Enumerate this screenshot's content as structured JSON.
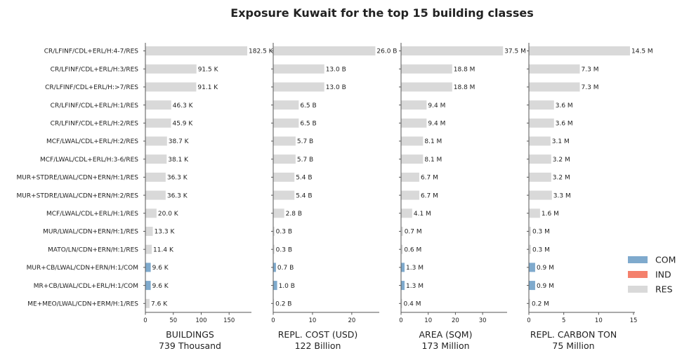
{
  "chart_data": {
    "type": "bar",
    "orientation": "horizontal",
    "title": "Exposure Kuwait for the top 15 building classes",
    "categories": [
      "CR/LFINF/CDL+ERL/H:4-7/RES",
      "CR/LFINF/CDL+ERL/H:3/RES",
      "CR/LFINF/CDL+ERL/H:>7/RES",
      "CR/LFINF/CDL+ERL/H:1/RES",
      "CR/LFINF/CDL+ERL/H:2/RES",
      "MCF/LWAL/CDL+ERL/H:2/RES",
      "MCF/LWAL/CDL+ERL/H:3-6/RES",
      "MUR+STDRE/LWAL/CDN+ERN/H:1/RES",
      "MUR+STDRE/LWAL/CDN+ERN/H:2/RES",
      "MCF/LWAL/CDL+ERL/H:1/RES",
      "MUR/LWAL/CDN+ERN/H:1/RES",
      "MATO/LN/CDN+ERN/H:1/RES",
      "MUR+CB/LWAL/CDN+ERN/H:1/COM",
      "MR+CB/LWAL/CDL+ERL/H:1/COM",
      "ME+MEO/LWAL/CDN+ERM/H:1/RES"
    ],
    "occupancy": [
      "RES",
      "RES",
      "RES",
      "RES",
      "RES",
      "RES",
      "RES",
      "RES",
      "RES",
      "RES",
      "RES",
      "RES",
      "COM",
      "COM",
      "RES"
    ],
    "legend": {
      "position": "right",
      "items": [
        {
          "name": "COM",
          "color": "#7faacd"
        },
        {
          "name": "IND",
          "color": "#f4806c"
        },
        {
          "name": "RES",
          "color": "#d9d9d9"
        }
      ]
    },
    "panels": [
      {
        "xlabel": "BUILDINGS",
        "total": "739 Thousand",
        "xlim": [
          0,
          190
        ],
        "ticks": [
          0,
          50,
          100,
          150
        ],
        "values": [
          182.5,
          91.5,
          91.1,
          46.3,
          45.9,
          38.7,
          38.1,
          36.3,
          36.3,
          20.0,
          13.3,
          11.4,
          9.6,
          9.6,
          7.6
        ],
        "labels": [
          "182.5 K",
          "91.5 K",
          "91.1 K",
          "46.3 K",
          "45.9 K",
          "38.7 K",
          "38.1 K",
          "36.3 K",
          "36.3 K",
          "20.0 K",
          "13.3 K",
          "11.4 K",
          "9.6 K",
          "9.6 K",
          "7.6 K"
        ]
      },
      {
        "xlabel": "REPL. COST (USD)",
        "total": "122 Billion",
        "xlim": [
          0,
          27
        ],
        "ticks": [
          0,
          10,
          20
        ],
        "values": [
          26.0,
          13.0,
          13.0,
          6.5,
          6.5,
          5.7,
          5.7,
          5.4,
          5.4,
          2.8,
          0.3,
          0.3,
          0.7,
          1.0,
          0.2
        ],
        "labels": [
          "26.0 B",
          "13.0 B",
          "13.0 B",
          "6.5 B",
          "6.5 B",
          "5.7 B",
          "5.7 B",
          "5.4 B",
          "5.4 B",
          "2.8 B",
          "0.3 B",
          "0.3 B",
          "0.7 B",
          "1.0 B",
          "0.2 B"
        ]
      },
      {
        "xlabel": "AREA (SQM)",
        "total": "173 Million",
        "xlim": [
          0,
          39
        ],
        "ticks": [
          0,
          10,
          20,
          30
        ],
        "values": [
          37.5,
          18.8,
          18.8,
          9.4,
          9.4,
          8.1,
          8.1,
          6.7,
          6.7,
          4.1,
          0.7,
          0.6,
          1.3,
          1.3,
          0.4
        ],
        "labels": [
          "37.5 M",
          "18.8 M",
          "18.8 M",
          "9.4 M",
          "9.4 M",
          "8.1 M",
          "8.1 M",
          "6.7 M",
          "6.7 M",
          "4.1 M",
          "0.7 M",
          "0.6 M",
          "1.3 M",
          "1.3 M",
          "0.4 M"
        ]
      },
      {
        "xlabel": "REPL. CARBON TON",
        "total": "75 Million",
        "xlim": [
          0,
          15.2
        ],
        "ticks": [
          0,
          5,
          10,
          15
        ],
        "values": [
          14.5,
          7.3,
          7.3,
          3.6,
          3.6,
          3.1,
          3.2,
          3.2,
          3.3,
          1.6,
          0.3,
          0.3,
          0.9,
          0.9,
          0.2
        ],
        "labels": [
          "14.5 M",
          "7.3 M",
          "7.3 M",
          "3.6 M",
          "3.6 M",
          "3.1 M",
          "3.2 M",
          "3.2 M",
          "3.3 M",
          "1.6 M",
          "0.3 M",
          "0.3 M",
          "0.9 M",
          "0.9 M",
          "0.2 M"
        ]
      }
    ]
  }
}
